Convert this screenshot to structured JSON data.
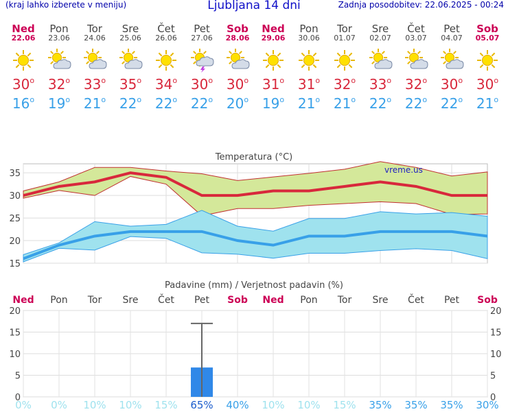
{
  "header": {
    "menu_hint": "(kraj lahko izberete v meniju)",
    "title": "Ljubljana 14 dni",
    "updated": "Zadnja posodobitev: 22.06.2025 - 00:24"
  },
  "days": [
    {
      "name": "Ned",
      "date": "22.06",
      "weekend": true,
      "icon": "sun-icon",
      "tmax": "30",
      "tmin": "16"
    },
    {
      "name": "Pon",
      "date": "23.06",
      "weekend": false,
      "icon": "sun-cloud-icon",
      "tmax": "32",
      "tmin": "19"
    },
    {
      "name": "Tor",
      "date": "24.06",
      "weekend": false,
      "icon": "sun-cloud-icon",
      "tmax": "33",
      "tmin": "21"
    },
    {
      "name": "Sre",
      "date": "25.06",
      "weekend": false,
      "icon": "sun-cloud-icon",
      "tmax": "35",
      "tmin": "22"
    },
    {
      "name": "Čet",
      "date": "26.06",
      "weekend": false,
      "icon": "sun-icon",
      "tmax": "34",
      "tmin": "22"
    },
    {
      "name": "Pet",
      "date": "27.06",
      "weekend": false,
      "icon": "sun-storm-icon",
      "tmax": "30",
      "tmin": "22"
    },
    {
      "name": "Sob",
      "date": "28.06",
      "weekend": true,
      "icon": "sun-cloud-icon",
      "tmax": "30",
      "tmin": "20"
    },
    {
      "name": "Ned",
      "date": "29.06",
      "weekend": true,
      "icon": "sun-icon",
      "tmax": "31",
      "tmin": "19"
    },
    {
      "name": "Pon",
      "date": "30.06",
      "weekend": false,
      "icon": "sun-icon",
      "tmax": "31",
      "tmin": "21"
    },
    {
      "name": "Tor",
      "date": "01.07",
      "weekend": false,
      "icon": "sun-icon",
      "tmax": "32",
      "tmin": "21"
    },
    {
      "name": "Sre",
      "date": "02.07",
      "weekend": false,
      "icon": "sun-cloud-icon",
      "tmax": "33",
      "tmin": "22"
    },
    {
      "name": "Čet",
      "date": "03.07",
      "weekend": false,
      "icon": "sun-cloud-icon",
      "tmax": "32",
      "tmin": "22"
    },
    {
      "name": "Pet",
      "date": "04.07",
      "weekend": false,
      "icon": "sun-cloud-icon",
      "tmax": "30",
      "tmin": "22"
    },
    {
      "name": "Sob",
      "date": "05.07",
      "weekend": true,
      "icon": "sun-icon",
      "tmax": "30",
      "tmin": "21"
    }
  ],
  "degree_symbol": "o",
  "colors": {
    "tmax": "#d8283c",
    "tmin": "#38a0e8",
    "weekend": "#cc0055",
    "weekday": "#444444",
    "max_band": "#d4e89a",
    "min_band": "#9fe2ee",
    "precip_bar": "#3088e8",
    "prob_low": "#9fe2ee",
    "prob_mid": "#38a0e8",
    "prob_high": "#1a5ccc"
  },
  "chart_data": [
    {
      "type": "line",
      "title": "Temperatura (°C)",
      "watermark": "vreme.us",
      "ylim": [
        15,
        37
      ],
      "yticks": [
        15,
        20,
        25,
        30,
        35
      ],
      "grid": true,
      "categories": [
        "22.06",
        "23.06",
        "24.06",
        "25.06",
        "26.06",
        "27.06",
        "28.06",
        "29.06",
        "30.06",
        "01.07",
        "02.07",
        "03.07",
        "04.07",
        "05.07"
      ],
      "series": [
        {
          "role": "max",
          "values": [
            30,
            32,
            33,
            35,
            34,
            30,
            30,
            31,
            31,
            32,
            33,
            32,
            30,
            30
          ],
          "band_high": [
            31,
            33,
            36.2,
            36.2,
            35.4,
            34.8,
            33.3,
            34.1,
            34.9,
            35.8,
            37.5,
            36.2,
            34.3,
            35.2
          ],
          "band_low": [
            29.4,
            31.1,
            30,
            34.2,
            32.5,
            25.5,
            27.1,
            27.1,
            27.8,
            28.2,
            28.6,
            28.2,
            25.8,
            25.9
          ]
        },
        {
          "role": "min",
          "values": [
            16,
            19,
            21,
            22,
            22,
            22,
            20,
            19,
            21,
            21,
            22,
            22,
            22,
            21
          ],
          "band_high": [
            16.9,
            19.5,
            24.2,
            23.2,
            23.6,
            26.7,
            23.2,
            22.1,
            24.9,
            24.9,
            26.4,
            25.9,
            26.2,
            25.4
          ],
          "band_low": [
            15.3,
            18.3,
            17.9,
            20.9,
            20.5,
            17.3,
            17,
            16.1,
            17.2,
            17.2,
            17.8,
            18.2,
            17.8,
            16
          ]
        }
      ]
    },
    {
      "type": "bar",
      "title": "Padavine (mm) / Verjetnost padavin (%)",
      "ylim": [
        0,
        20
      ],
      "yticks": [
        0,
        5,
        10,
        15,
        20
      ],
      "grid": true,
      "categories": [
        "Ned",
        "Pon",
        "Tor",
        "Sre",
        "Čet",
        "Pet",
        "Sob",
        "Ned",
        "Pon",
        "Tor",
        "Sre",
        "Čet",
        "Pet",
        "Sob"
      ],
      "values": [
        0,
        0,
        0,
        0,
        0,
        6.8,
        0,
        0,
        0,
        0,
        0,
        0,
        0,
        0
      ],
      "error_max": [
        null,
        null,
        null,
        null,
        null,
        17,
        null,
        null,
        null,
        null,
        null,
        null,
        null,
        null
      ],
      "probability": [
        "0%",
        "0%",
        "10%",
        "10%",
        "15%",
        "65%",
        "40%",
        "10%",
        "10%",
        "15%",
        "35%",
        "35%",
        "35%",
        "30%"
      ]
    }
  ]
}
